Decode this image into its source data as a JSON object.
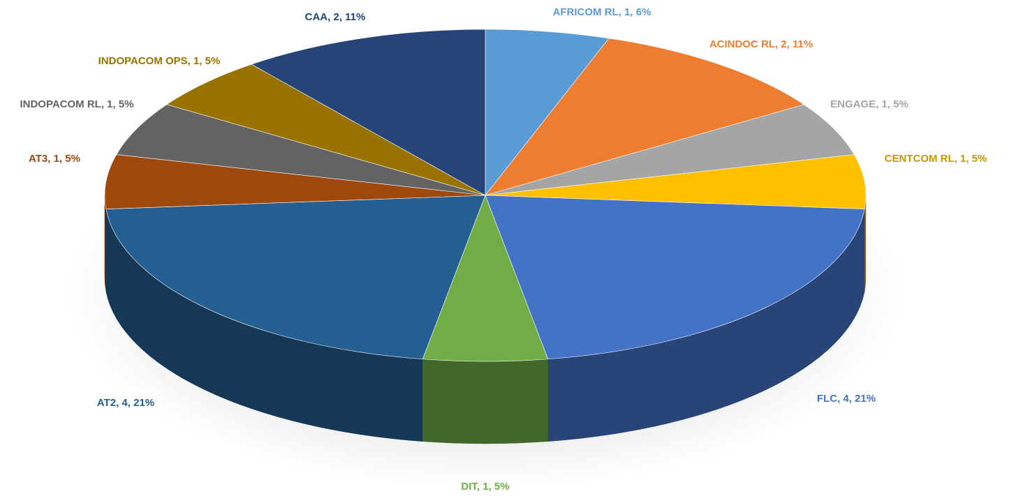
{
  "chart_data": {
    "type": "pie3d",
    "values": [
      1,
      2,
      1,
      1,
      4,
      1,
      4,
      1,
      1,
      1,
      2
    ],
    "value_labels": [
      "AFRICOM RL, 1, 6%",
      "ACINDOC RL, 2, 11%",
      "ENGAGE, 1, 5%",
      "CENTCOM RL, 1, 5%",
      "FLC, 4, 21%",
      "DIT, 1, 5%",
      "AT2, 4, 21%",
      "AT3, 1, 5%",
      "INDOPACOM RL, 1, 5%",
      "INDOPACOM OPS, 1, 5%",
      "CAA, 2, 11%"
    ],
    "colors": [
      "#5b9bd5",
      "#ed7d31",
      "#a5a5a5",
      "#ffc000",
      "#4472c4",
      "#70ad47",
      "#255e91",
      "#9e480e",
      "#636363",
      "#997300",
      "#264478"
    ],
    "label_colors": [
      "#5b9bd5",
      "#ed7d31",
      "#a5a5a5",
      "#c99700",
      "#4472c4",
      "#70ad47",
      "#255e91",
      "#9e480e",
      "#636363",
      "#997300",
      "#264478"
    ]
  }
}
